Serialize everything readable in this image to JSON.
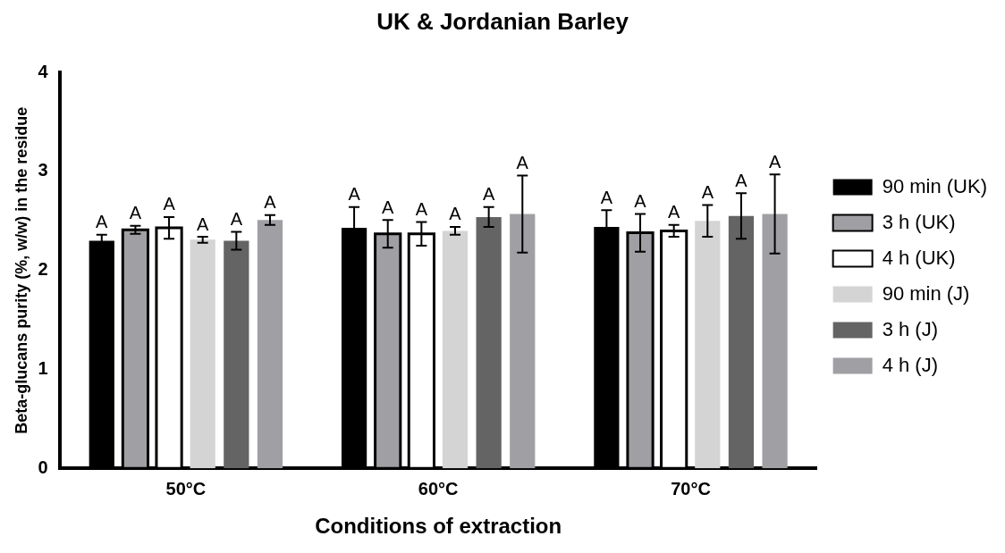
{
  "chart_data": {
    "type": "bar",
    "title": "UK & Jordanian Barley",
    "xlabel": "Conditions of extraction",
    "ylabel": "Beta-glucans purity (%, w/w) in the residue",
    "categories": [
      "50°C",
      "60°C",
      "70°C"
    ],
    "series": [
      {
        "name": "90 min (UK)",
        "color": "#000000",
        "values": [
          2.3,
          2.43,
          2.44
        ],
        "errors": [
          0.06,
          0.21,
          0.17
        ],
        "value_labels": [
          "A",
          "A",
          "A"
        ]
      },
      {
        "name": "3 h (UK)",
        "color": "#a0a0a4",
        "values": [
          2.41,
          2.37,
          2.38
        ],
        "errors": [
          0.04,
          0.14,
          0.19
        ],
        "value_labels": [
          "A",
          "A",
          "A"
        ]
      },
      {
        "name": "4 h (UK)",
        "color": "#ffffff",
        "values": [
          2.43,
          2.37,
          2.4
        ],
        "errors": [
          0.11,
          0.12,
          0.06
        ],
        "value_labels": [
          "A",
          "A",
          "A"
        ]
      },
      {
        "name": "90 min (J)",
        "color": "#d4d4d4",
        "values": [
          2.31,
          2.4,
          2.5
        ],
        "errors": [
          0.03,
          0.04,
          0.16
        ],
        "value_labels": [
          "A",
          "A",
          "A"
        ]
      },
      {
        "name": "3 h (J)",
        "color": "#646464",
        "values": [
          2.3,
          2.54,
          2.55
        ],
        "errors": [
          0.09,
          0.1,
          0.23
        ],
        "value_labels": [
          "A",
          "A",
          "A"
        ]
      },
      {
        "name": "4 h (J)",
        "color": "#a0a0a4",
        "values": [
          2.51,
          2.57,
          2.57
        ],
        "errors": [
          0.05,
          0.39,
          0.4
        ],
        "value_labels": [
          "A",
          "A",
          "A"
        ]
      }
    ],
    "ylim": [
      0,
      4
    ],
    "yticks": [
      0,
      1,
      2,
      3,
      4
    ],
    "grid": false,
    "legend": "right"
  }
}
